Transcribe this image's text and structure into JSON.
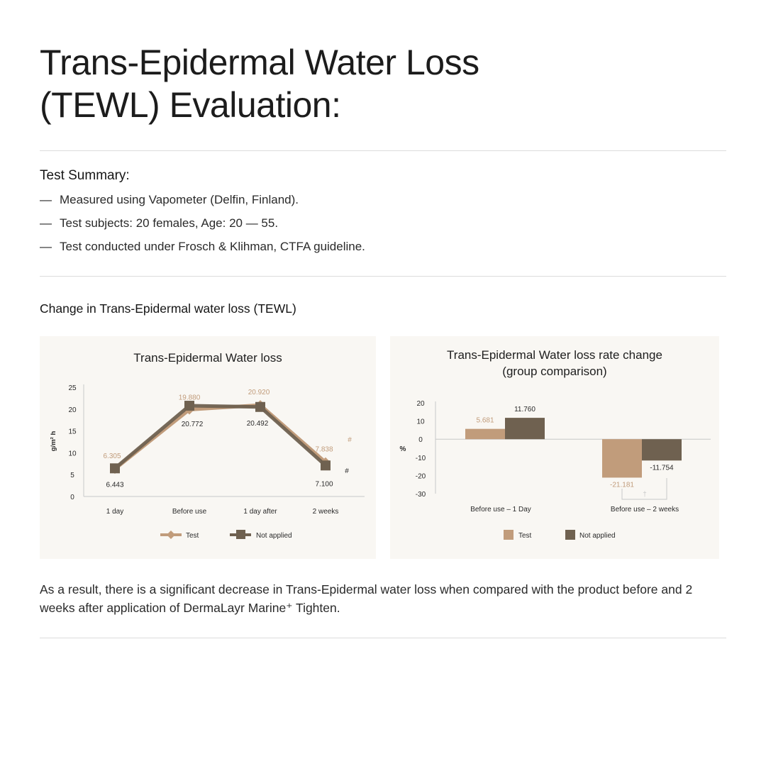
{
  "page": {
    "title_lines": [
      "Trans-Epidermal Water Loss",
      "(TEWL) Evaluation:"
    ],
    "summary_title": "Test Summary:",
    "summary_dash": "—",
    "summary_items": [
      "Measured using Vapometer (Delfin, Finland).",
      "Test subjects: 20 females, Age: 20 — 55.",
      "Test conducted under Frosch & Klihman, CTFA guideline."
    ],
    "section_title": "Change in Trans-Epidermal water loss (TEWL)",
    "conclusion": "As a result, there is a significant decrease in Trans-Epidermal water loss when compared with the product before and 2 weeks after application of DermaLayr Marine⁺ Tighten."
  },
  "colors": {
    "test": "#c19c7b",
    "not_applied": "#6f6150",
    "axis": "#c8c8c8",
    "text": "#2a2a2a",
    "panel_bg": "#f9f7f3"
  },
  "chart_data": [
    {
      "type": "line",
      "title": "Trans-Epidermal Water loss",
      "ylabel": "g/m² h",
      "xlabel": "",
      "ylim": [
        0,
        25
      ],
      "yticks": [
        0,
        5,
        10,
        15,
        20,
        25
      ],
      "categories": [
        "1 day",
        "Before use",
        "1 day after",
        "2 weeks"
      ],
      "series": [
        {
          "name": "Test",
          "values": [
            6.305,
            19.88,
            20.92,
            7.838
          ],
          "labels": [
            "6.305",
            "19.880",
            "20.920",
            "7.838"
          ],
          "marker": "diamond"
        },
        {
          "name": "Not applied",
          "values": [
            6.443,
            20.772,
            20.492,
            7.1
          ],
          "labels": [
            "6.443",
            "20.772",
            "20.492",
            "7.100"
          ],
          "marker": "square"
        }
      ],
      "annotations": [
        "#",
        "#"
      ],
      "legend": "bottom",
      "grid": false
    },
    {
      "type": "bar",
      "title": "Trans-Epidermal Water loss rate change",
      "subtitle": "(group comparison)",
      "ylabel": "%",
      "xlabel": "",
      "ylim": [
        -30,
        20
      ],
      "yticks": [
        20,
        10,
        0,
        -10,
        -20,
        -30
      ],
      "categories": [
        "Before use – 1 Day",
        "Before use – 2 weeks"
      ],
      "series": [
        {
          "name": "Test",
          "values": [
            5.681,
            -21.181
          ],
          "labels": [
            "5.681",
            "-21.181"
          ]
        },
        {
          "name": "Not applied",
          "values": [
            11.76,
            -11.754
          ],
          "labels": [
            "11.760",
            "-11.754"
          ]
        }
      ],
      "annotations": [
        "†"
      ],
      "legend": "bottom",
      "grid": false
    }
  ]
}
